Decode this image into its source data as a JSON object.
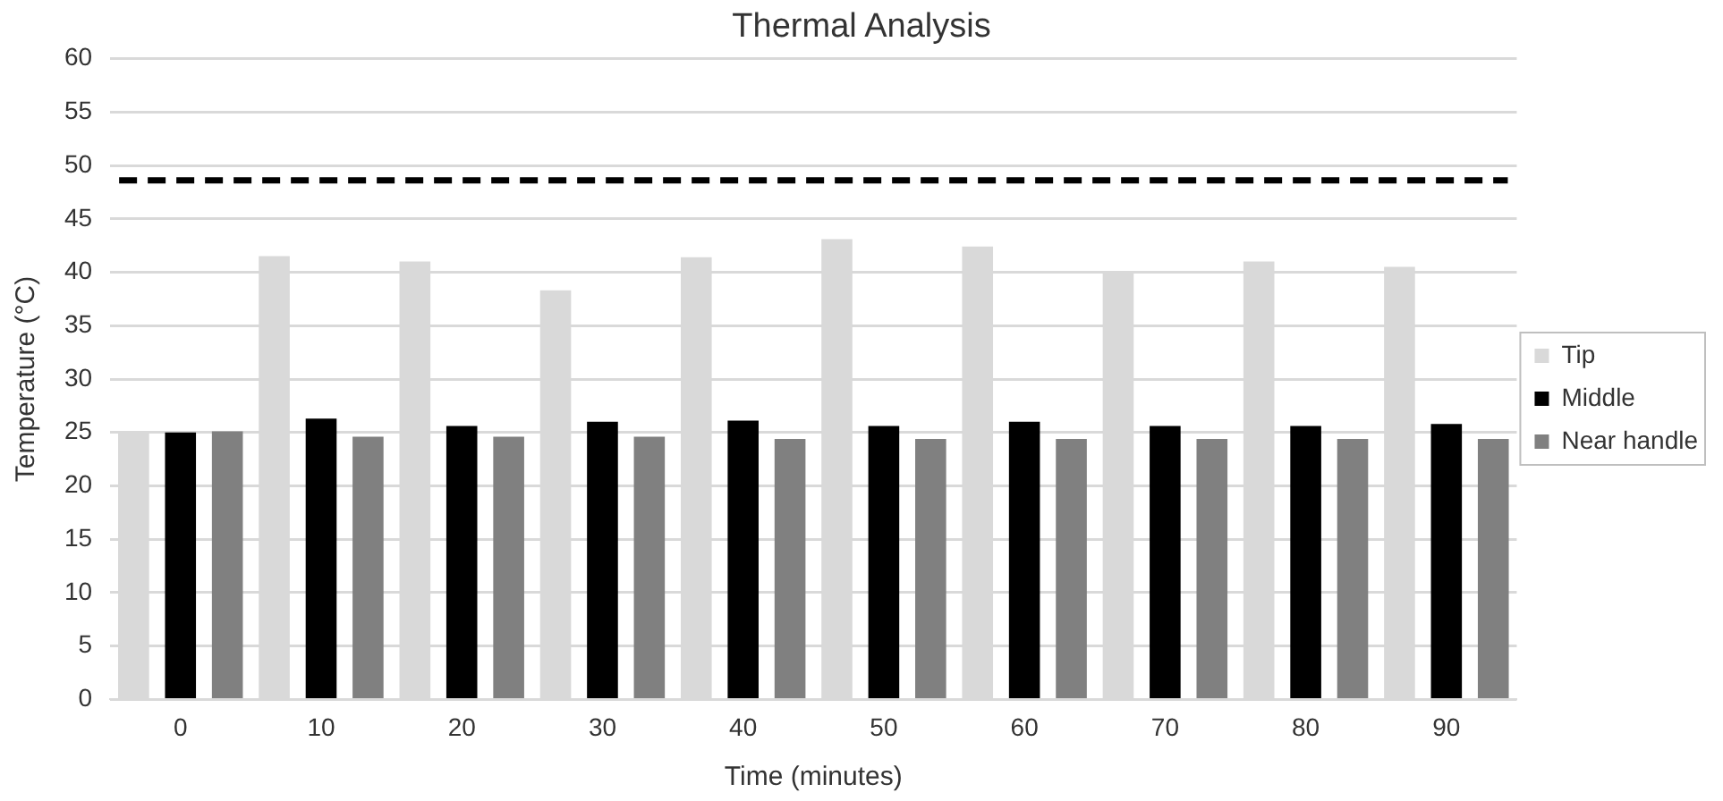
{
  "chart_data": {
    "type": "bar",
    "title": "Thermal Analysis",
    "xlabel": "Time (minutes)",
    "ylabel": "Temperature (°C)",
    "categories": [
      "0",
      "10",
      "20",
      "30",
      "40",
      "50",
      "60",
      "70",
      "80",
      "90"
    ],
    "series": [
      {
        "name": "Tip",
        "color": "#d9d9d9",
        "values": [
          25,
          41.5,
          41,
          38.3,
          41.4,
          43.1,
          42.4,
          40,
          41,
          40.5
        ]
      },
      {
        "name": "Middle",
        "color": "#000000",
        "values": [
          25,
          26.3,
          25.6,
          26,
          26.1,
          25.6,
          26,
          25.6,
          25.6,
          25.8
        ]
      },
      {
        "name": "Near handle",
        "color": "#808080",
        "values": [
          25.1,
          24.6,
          24.6,
          24.6,
          24.4,
          24.4,
          24.4,
          24.4,
          24.4,
          24.4
        ]
      }
    ],
    "ylim": [
      0,
      60
    ],
    "yticks": [
      0,
      5,
      10,
      15,
      20,
      25,
      30,
      35,
      40,
      45,
      50,
      55,
      60
    ],
    "grid": "y",
    "legend": "right",
    "ref_lines": [
      {
        "axis": "y",
        "value": 48.6,
        "color": "#000000",
        "line_style": "dashed"
      }
    ]
  }
}
